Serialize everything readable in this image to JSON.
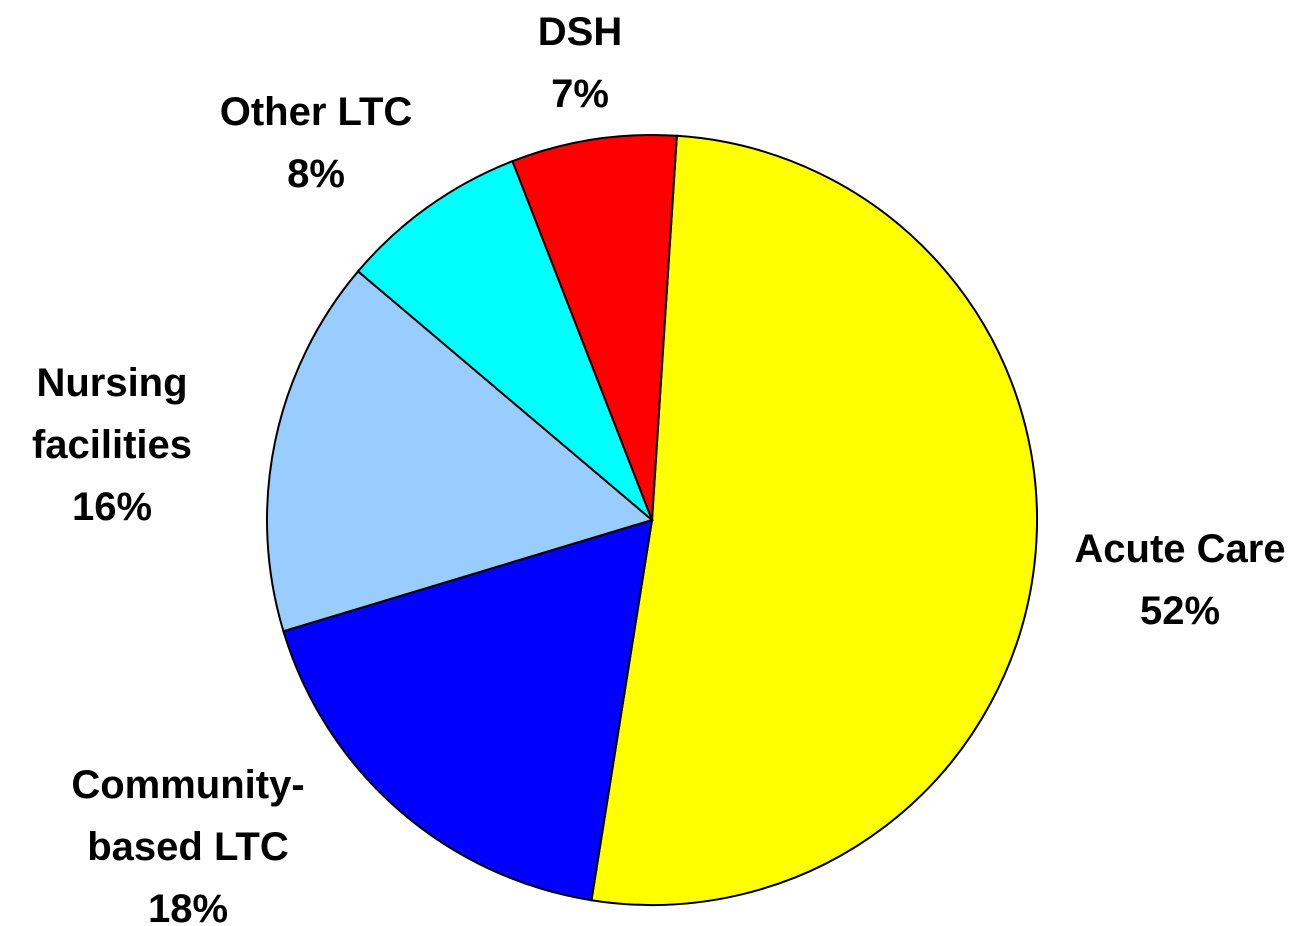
{
  "chart_data": {
    "type": "pie",
    "categories": [
      "Acute Care",
      "Community-based LTC",
      "Nursing facilities",
      "Other LTC",
      "DSH"
    ],
    "values": [
      52,
      18,
      16,
      8,
      7
    ],
    "value_labels": [
      "52%",
      "18%",
      "16%",
      "8%",
      "7%"
    ],
    "colors": [
      "#ffff00",
      "#0000ff",
      "#99ccff",
      "#00ffff",
      "#ff0000"
    ]
  }
}
